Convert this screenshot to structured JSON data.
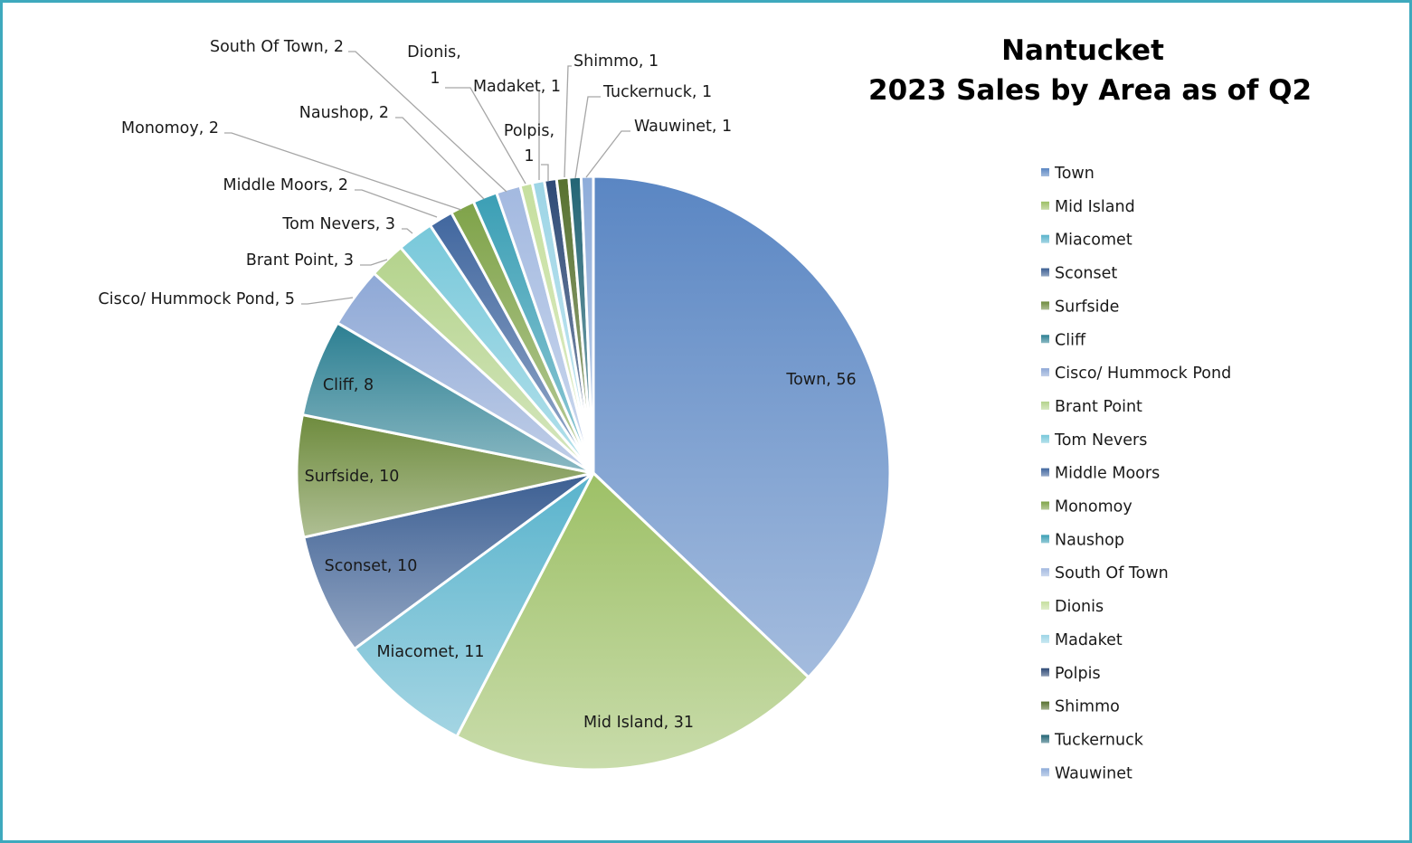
{
  "chart_data": {
    "type": "pie",
    "title": [
      "Nantucket",
      "2023 Sales by Area as of Q2"
    ],
    "legend_position": "right",
    "data_labels": "category, value",
    "slices": [
      {
        "name": "Town",
        "value": 56,
        "color": "#5a86c3",
        "label": "Town, 56"
      },
      {
        "name": "Mid Island",
        "value": 31,
        "color": "#9dc066",
        "label": "Mid Island, 31"
      },
      {
        "name": "Miacomet",
        "value": 11,
        "color": "#59b3cc",
        "label": "Miacomet, 11"
      },
      {
        "name": "Sconset",
        "value": 10,
        "color": "#3b5e92",
        "label": "Sconset, 10"
      },
      {
        "name": "Surfside",
        "value": 10,
        "color": "#6e8b3d",
        "label": "Surfside, 10"
      },
      {
        "name": "Cliff",
        "value": 8,
        "color": "#2c7f92",
        "label": "Cliff, 8"
      },
      {
        "name": "Cisco/ Hummock Pond",
        "value": 5,
        "color": "#8ea8d6",
        "label": "Cisco/ Hummock Pond, 5"
      },
      {
        "name": "Brant Point",
        "value": 3,
        "color": "#b4d38c",
        "label": "Brant Point, 3"
      },
      {
        "name": "Tom Nevers",
        "value": 3,
        "color": "#78c8da",
        "label": "Tom Nevers, 3"
      },
      {
        "name": "Middle Moors",
        "value": 2,
        "color": "#41679f",
        "label": "Middle Moors, 2"
      },
      {
        "name": "Monomoy",
        "value": 2,
        "color": "#7fa349",
        "label": "Monomoy, 2"
      },
      {
        "name": "Naushop",
        "value": 2,
        "color": "#3b9fb5",
        "label": "Naushop, 2"
      },
      {
        "name": "South Of Town",
        "value": 2,
        "color": "#a3b9e0",
        "label": "South Of Town, 2"
      },
      {
        "name": "Dionis",
        "value": 1,
        "color": "#c6df9f",
        "label": "Dionis,\n1"
      },
      {
        "name": "Madaket",
        "value": 1,
        "color": "#9dd5e6",
        "label": "Madaket, 1"
      },
      {
        "name": "Polpis",
        "value": 1,
        "color": "#2e4a76",
        "label": "Polpis,\n1"
      },
      {
        "name": "Shimmo",
        "value": 1,
        "color": "#57712f",
        "label": "Shimmo, 1"
      },
      {
        "name": "Tuckernuck",
        "value": 1,
        "color": "#236575",
        "label": "Tuckernuck, 1"
      },
      {
        "name": "Wauwinet",
        "value": 1,
        "color": "#8eacd9",
        "label": "Wauwinet, 1"
      }
    ]
  }
}
